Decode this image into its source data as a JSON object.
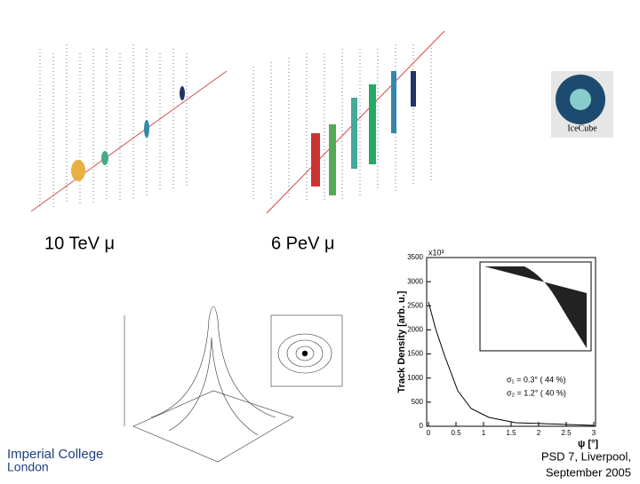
{
  "labels": {
    "left_event": "10 TeV μ",
    "right_event": "6 PeV μ"
  },
  "logo": {
    "institution_line1": "Imperial College",
    "institution_line2": "London",
    "icecube": "IceCube"
  },
  "footer": {
    "line1": "PSD 7, Liverpool,",
    "line2": "September 2005"
  },
  "plot": {
    "y_label": "Track Density [arb. u.]",
    "x_label": "ψ [°]",
    "y_multiplier": "x10³",
    "y_ticks": [
      "0",
      "500",
      "1000",
      "1500",
      "2000",
      "2500",
      "3000",
      "3500"
    ],
    "x_ticks": [
      "0",
      "0.5",
      "1",
      "1.5",
      "2",
      "2.5",
      "3"
    ],
    "sigma1": "σ₁ = 0.3° ( 44 %)",
    "sigma2": "σ₂ = 1.2° ( 40 %)"
  }
}
